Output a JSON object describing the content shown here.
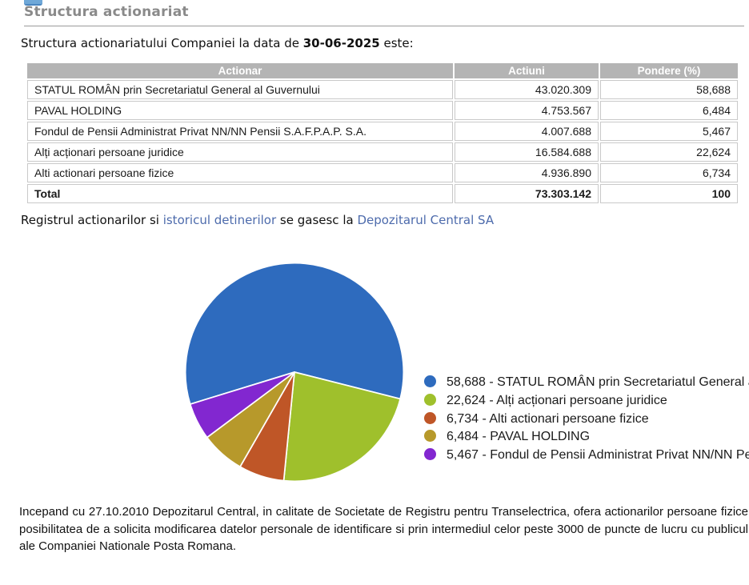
{
  "page": {
    "title": "Structura actionariat",
    "intro": {
      "prefix": "Structura actionariatului Companiei la data de ",
      "date": "30-06-2025",
      "suffix": " este:"
    },
    "registry_line": {
      "text1": "Registrul actionarilor si ",
      "link1": "istoricul detinerilor",
      "text2": " se gasesc la ",
      "link2": "Depozitarul Central SA"
    },
    "footer_paragraph": "Incepand cu 27.10.2010 Depozitarul Central, in calitate de Societate de Registru pentru Transelectrica, ofera actionarilor persoane fizice posibilitatea de a solicita modificarea datelor personale de identificare si prin intermediul celor peste 3000 de puncte de lucru cu publicul ale Companiei Nationale Posta Romana."
  },
  "table": {
    "columns": [
      "Actionar",
      "Actiuni",
      "Pondere (%)"
    ],
    "rows": [
      {
        "cells": [
          "STATUL ROMÂN prin Secretariatul General al Guvernului",
          "43.020.309",
          "58,688"
        ],
        "bold": false
      },
      {
        "cells": [
          "PAVAL HOLDING",
          "4.753.567",
          "6,484"
        ],
        "bold": false
      },
      {
        "cells": [
          "Fondul de Pensii Administrat Privat NN/NN Pensii S.A.F.P.A.P. S.A.",
          "4.007.688",
          "5,467"
        ],
        "bold": false
      },
      {
        "cells": [
          "Alți acționari persoane juridice",
          "16.584.688",
          "22,624"
        ],
        "bold": false
      },
      {
        "cells": [
          "Alti actionari persoane fizice",
          "4.936.890",
          "6,734"
        ],
        "bold": false
      },
      {
        "cells": [
          "Total",
          "73.303.142",
          "100"
        ],
        "bold": true
      }
    ]
  },
  "chart_data": {
    "type": "pie",
    "title": "",
    "legend_position": "right",
    "start_angle_deg_clockwise_from_top": 252.93,
    "slice_border_color": "#ffffff",
    "slices": [
      {
        "label": "STATUL ROMÂN prin Secretariatul General al Guvernului",
        "value": 58.688,
        "value_label": "58,688",
        "color": "#2e6bbe"
      },
      {
        "label": "Alți acționari persoane juridice",
        "value": 22.624,
        "value_label": "22,624",
        "color": "#9fc02c"
      },
      {
        "label": "Alti actionari persoane fizice",
        "value": 6.734,
        "value_label": "6,734",
        "color": "#bf5627"
      },
      {
        "label": "PAVAL HOLDING",
        "value": 6.484,
        "value_label": "6,484",
        "color": "#b7992b"
      },
      {
        "label": "Fondul de Pensii Administrat Privat NN/NN Pensii S.A.F.P.A.P. S.A.",
        "value": 5.467,
        "value_label": "5,467",
        "color": "#8227d0"
      }
    ]
  },
  "colors": {
    "title_gray": "#8a8a8a",
    "table_header_bg": "#b4b4b4",
    "table_border": "#c9c9c9",
    "link": "#4d6bac"
  }
}
